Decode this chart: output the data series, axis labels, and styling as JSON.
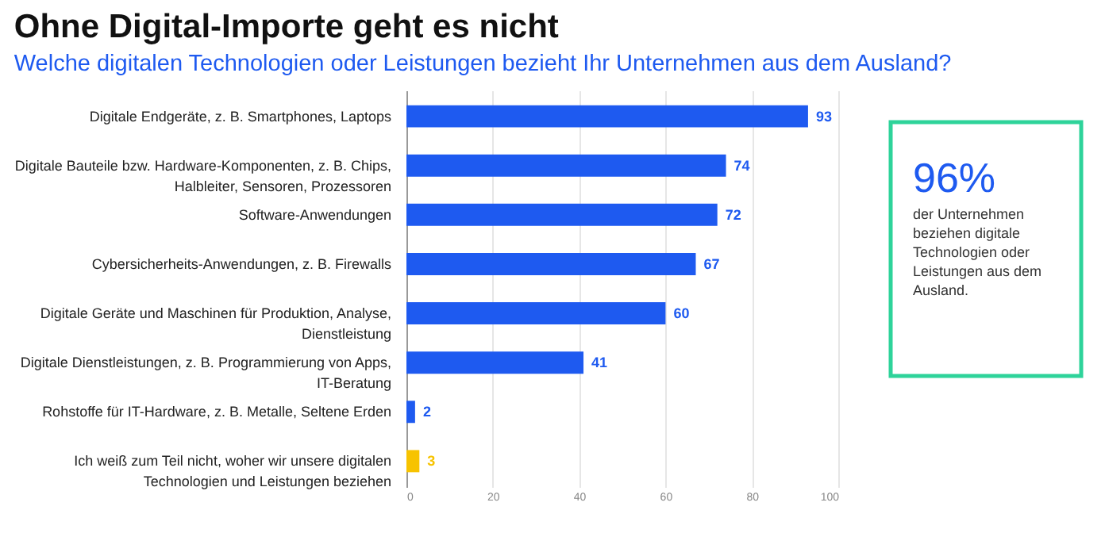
{
  "chart_data": {
    "type": "bar",
    "orientation": "horizontal",
    "title": "Ohne Digital-Importe geht es nicht",
    "subtitle": "Welche digitalen Technologien oder Leistungen bezieht Ihr Unternehmen aus dem Ausland?",
    "categories": [
      "Digitale Endgeräte, z. B. Smartphones, Laptops",
      "Digitale Bauteile bzw. Hardware-Komponenten, z. B. Chips, Halbleiter, Sensoren, Prozessoren",
      "Software-Anwendungen",
      "Cybersicherheits-Anwendungen, z. B. Firewalls",
      "Digitale Geräte und Maschinen für Produktion, Analyse, Dienstleistung",
      "Digitale Dienstleistungen, z. B. Programmierung von Apps, IT-Beratung",
      "Rohstoffe für IT-Hardware, z. B. Metalle, Seltene Erden",
      "Ich weiß zum Teil nicht, woher wir unsere digitalen Technologien und Leistungen beziehen"
    ],
    "values": [
      93,
      74,
      72,
      67,
      60,
      41,
      2,
      3
    ],
    "colors": [
      "#1e5af0",
      "#1e5af0",
      "#1e5af0",
      "#1e5af0",
      "#1e5af0",
      "#1e5af0",
      "#1e5af0",
      "#f7c300"
    ],
    "xlim": [
      0,
      100
    ],
    "xticks": [
      0,
      20,
      40,
      60,
      80,
      100
    ],
    "grid": "x",
    "data_labels": true,
    "annotations": [
      "96%",
      "der Unternehmen beziehen digitale Technologien oder Leistungen aus dem Ausland."
    ]
  }
}
